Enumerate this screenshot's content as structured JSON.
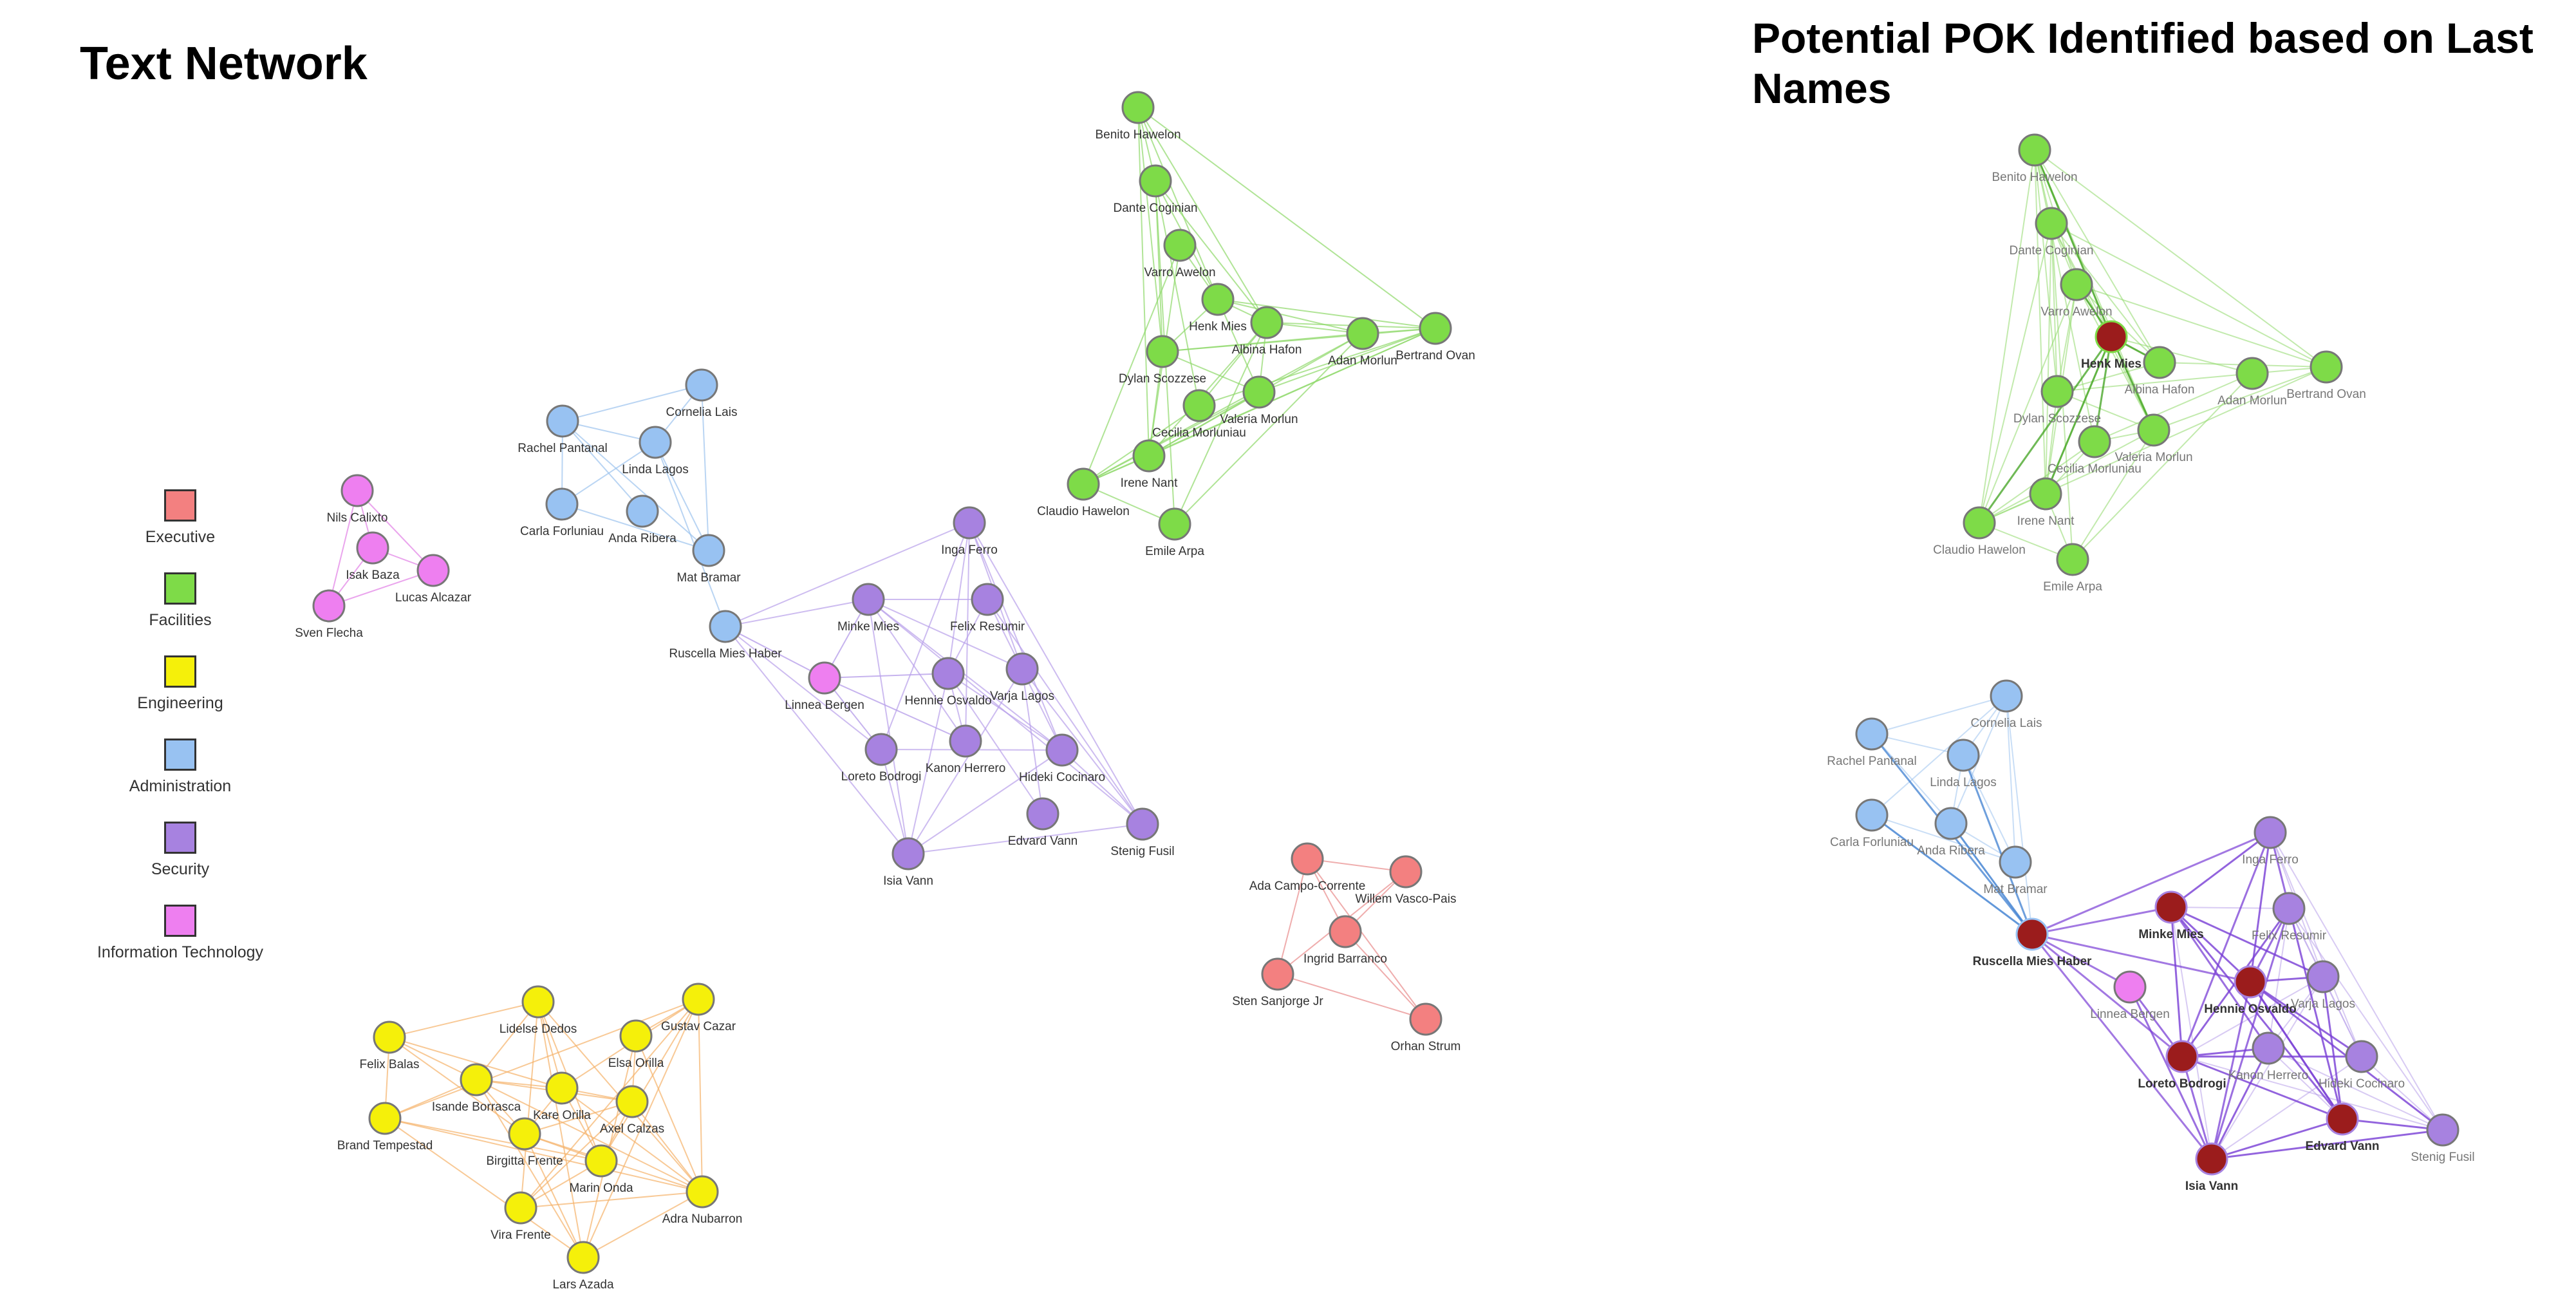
{
  "left_title": "Text Network",
  "right_title": "Potential POK Identified based on Last Names",
  "legend": [
    {
      "label": "Executive",
      "color": "#f38080"
    },
    {
      "label": "Facilities",
      "color": "#7edb48"
    },
    {
      "label": "Engineering",
      "color": "#f5f00a"
    },
    {
      "label": "Administration",
      "color": "#98c2f2"
    },
    {
      "label": "Security",
      "color": "#a782e0"
    },
    {
      "label": "Information Technology",
      "color": "#ee7ff0"
    }
  ],
  "edge_colors": {
    "Executive": "#e88a8a",
    "Facilities": "#8fd86a",
    "Engineering": "#f5b26a",
    "Administration": "#9cc3ee",
    "Security": "#b8a0ea",
    "Information Technology": "#e58fe8"
  },
  "pok_color": "#9b1c1c",
  "groups": [
    {
      "department": "Facilities",
      "members": [
        "Benito Hawelon",
        "Dante Coginian",
        "Varro Awelon",
        "Henk Mies",
        "Albina Hafon",
        "Adan Morlun",
        "Bertrand Ovan",
        "Dylan Scozzese",
        "Valeria Morlun",
        "Cecilia Morluniau",
        "Irene Nant",
        "Claudio Hawelon",
        "Emile Arpa"
      ]
    },
    {
      "department": "Administration",
      "members": [
        "Cornelia Lais",
        "Rachel Pantanal",
        "Linda Lagos",
        "Carla Forluniau",
        "Anda Ribera",
        "Mat Bramar",
        "Ruscella Mies Haber"
      ]
    },
    {
      "department": "Security",
      "members": [
        "Inga Ferro",
        "Minke Mies",
        "Felix Resumir",
        "Hennie Osvaldo",
        "Varja Lagos",
        "Loreto Bodrogi",
        "Kanon Herrero",
        "Hideki Cocinaro",
        "Edvard Vann",
        "Stenig Fusil",
        "Isia Vann"
      ]
    },
    {
      "department": "Information Technology",
      "members": [
        "Nils Calixto",
        "Isak Baza",
        "Lucas Alcazar",
        "Sven Flecha",
        "Linnea Bergen"
      ]
    },
    {
      "department": "Executive",
      "members": [
        "Ada Campo-Corrente",
        "Willem Vasco-Pais",
        "Ingrid Barranco",
        "Sten Sanjorge Jr",
        "Orhan Strum"
      ]
    },
    {
      "department": "Engineering",
      "members": [
        "Lidelse Dedos",
        "Gustav Cazar",
        "Felix Balas",
        "Elsa Orilla",
        "Isande Borrasca",
        "Kare Orilla",
        "Axel Calzas",
        "Brand Tempestad",
        "Birgitta Frente",
        "Marin Onda",
        "Vira Frente",
        "Adra Nubarron",
        "Lars Azada"
      ]
    }
  ],
  "pok_identified": [
    "Henk Mies",
    "Ruscella Mies Haber",
    "Minke Mies",
    "Hennie Osvaldo",
    "Loreto Bodrogi",
    "Edvard Vann",
    "Isia Vann"
  ],
  "right_network_groups": [
    "Facilities",
    "Administration",
    "Security",
    "Information Technology"
  ]
}
